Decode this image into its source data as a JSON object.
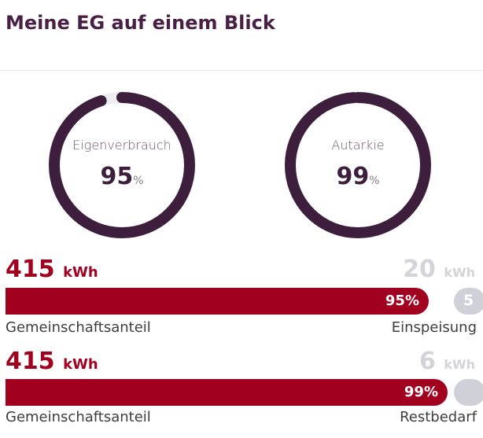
{
  "header": {
    "title": "Meine EG auf einem Blick"
  },
  "colors": {
    "ring": "#3d1f3d",
    "primary_red": "#a1001f",
    "muted_grey": "#cfd0d8"
  },
  "gauges": [
    {
      "label": "Eigenverbrauch",
      "value": "95",
      "unit": "%",
      "fraction": 0.95
    },
    {
      "label": "Autarkie",
      "value": "99",
      "unit": "%",
      "fraction": 0.99
    }
  ],
  "rows": [
    {
      "left_value": "415",
      "left_unit": "kWh",
      "right_value": "20",
      "right_unit": "kWh",
      "bar_percent_label": "95%",
      "bar_fraction": 0.95,
      "rest_label": "5",
      "left_caption": "Gemeinschaftsanteil",
      "right_caption": "Einspeisung"
    },
    {
      "left_value": "415",
      "left_unit": "kWh",
      "right_value": "6",
      "right_unit": "kWh",
      "bar_percent_label": "99%",
      "bar_fraction": 0.99,
      "rest_label": "",
      "left_caption": "Gemeinschaftsanteil",
      "right_caption": "Restbedarf"
    }
  ]
}
